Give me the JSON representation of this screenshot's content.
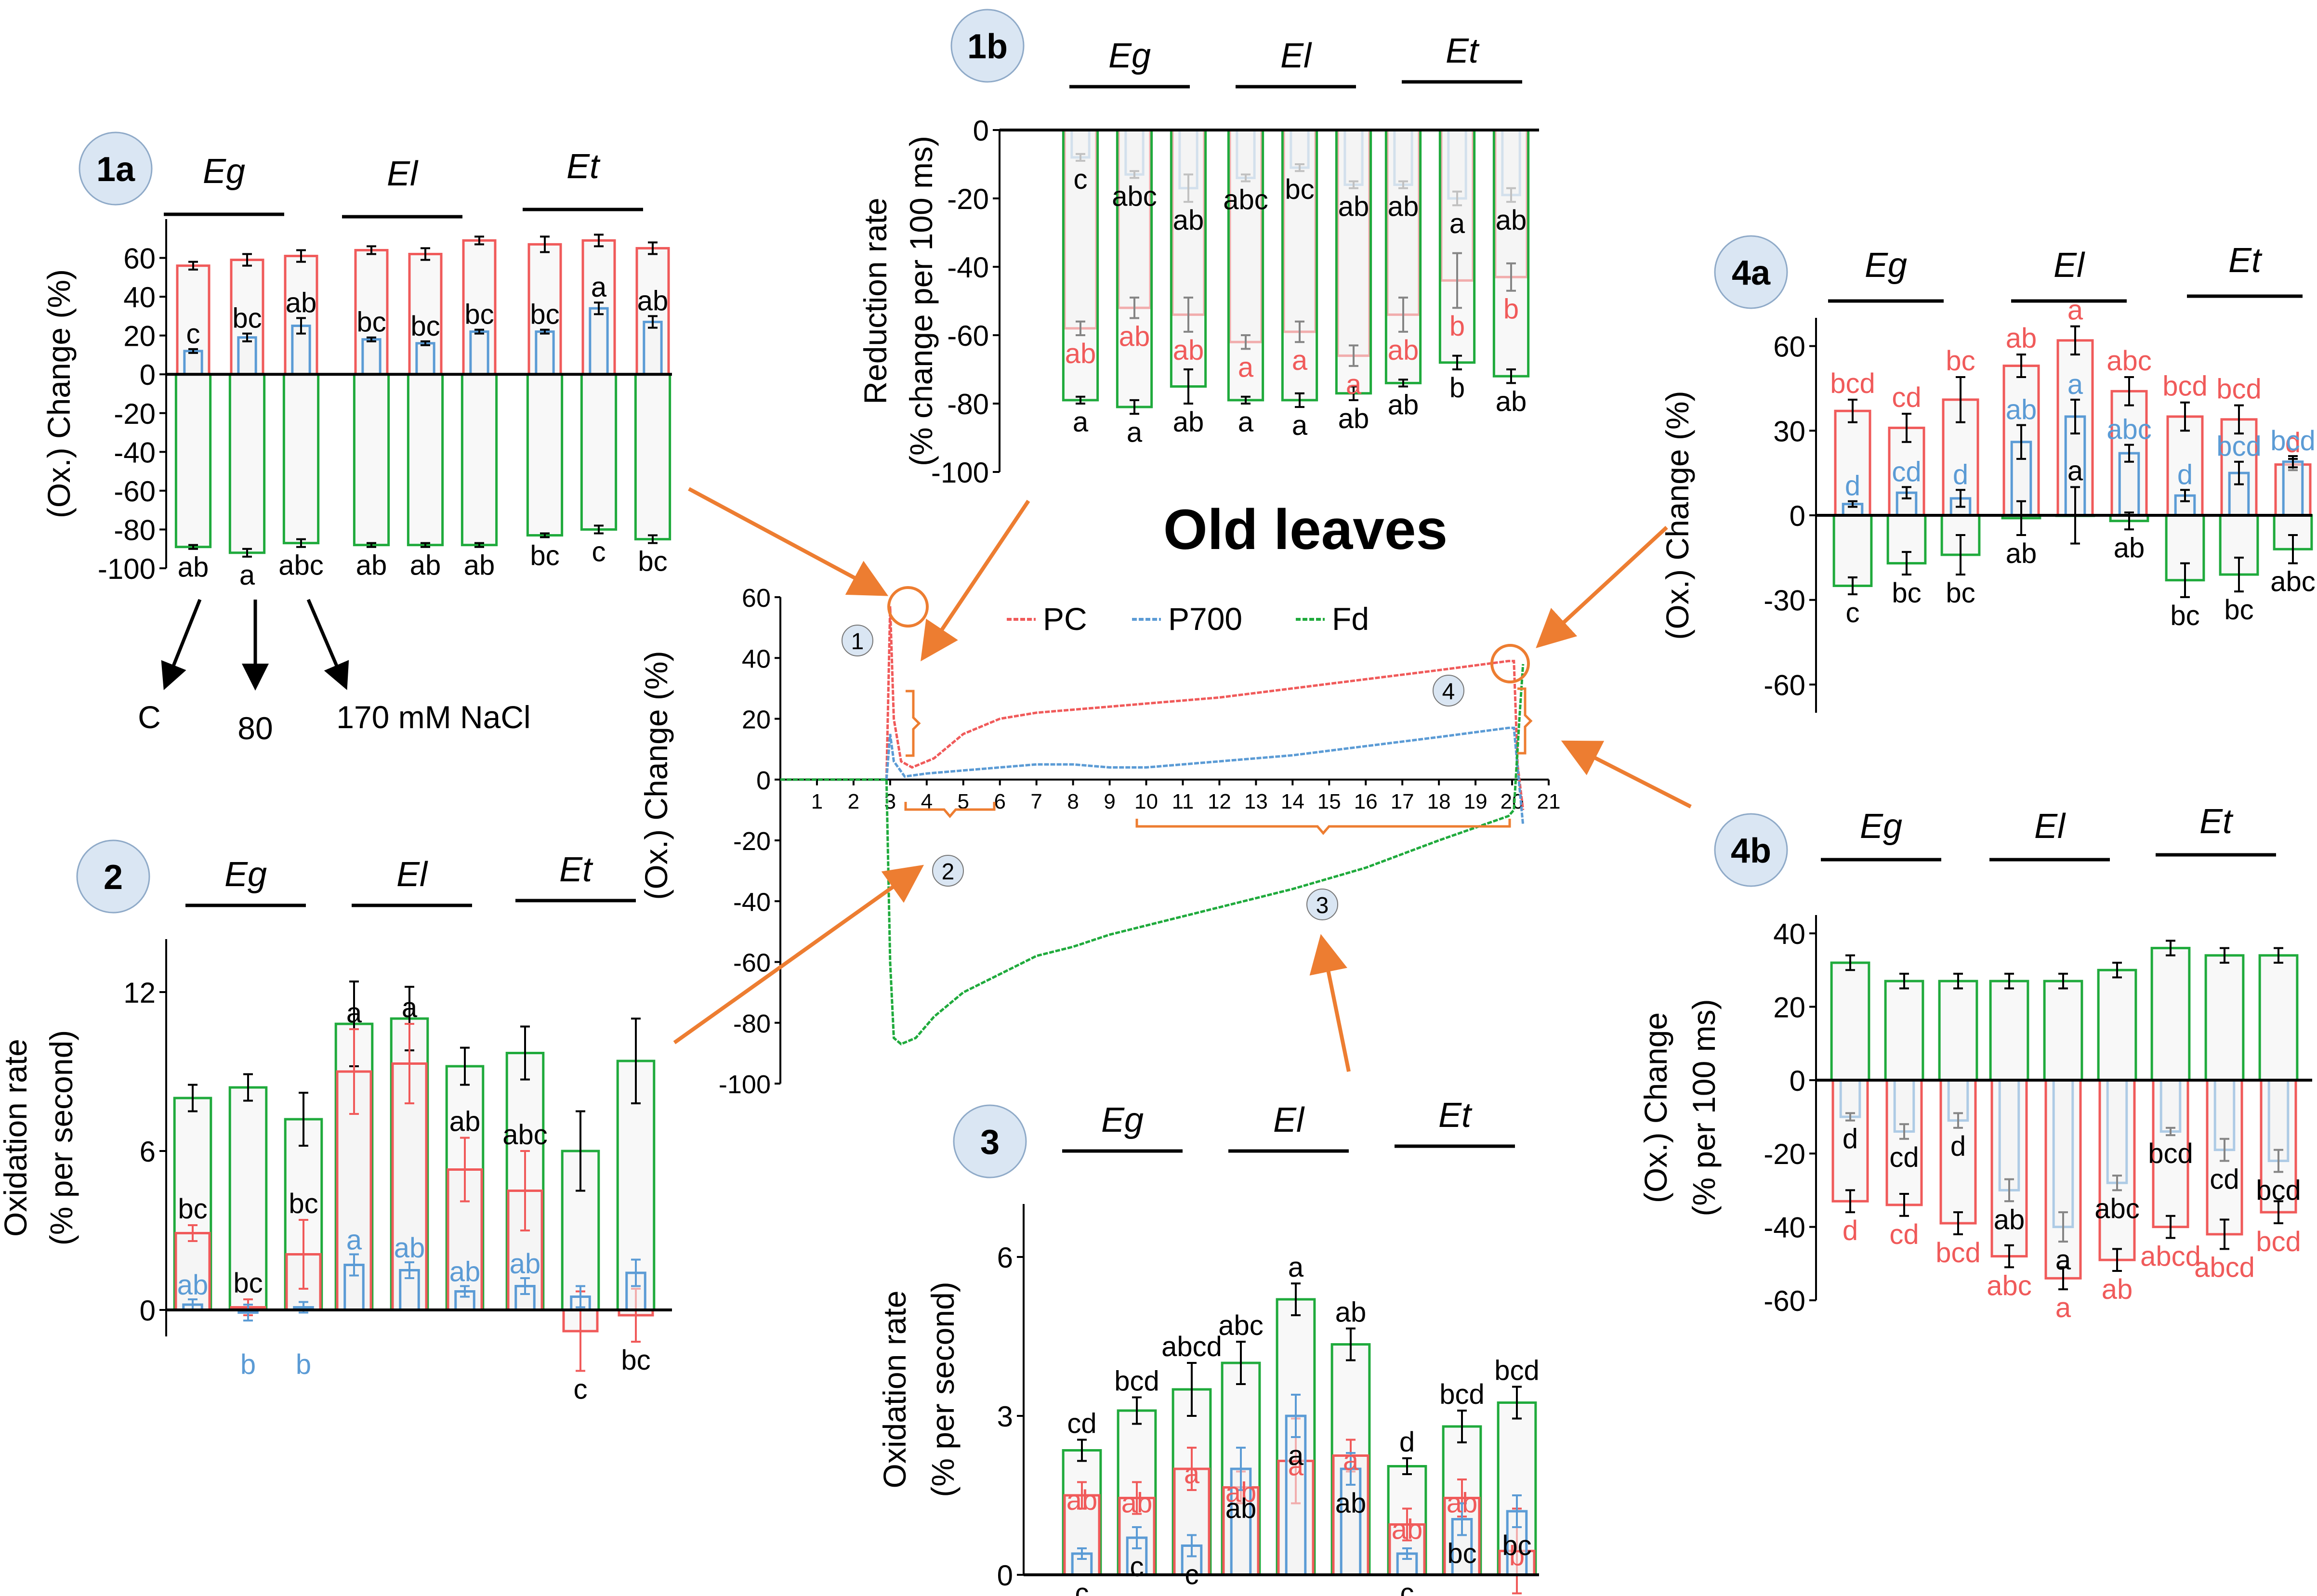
{
  "title": "Old leaves",
  "colors": {
    "pc": "#f05a5a",
    "p700": "#5b9bd5",
    "fd": "#1faa3c",
    "accent": "#ed7d31",
    "badge": "#dae6f3",
    "bar_fill": "#f2f2f2"
  },
  "chart_data": [
    {
      "id": "main",
      "type": "line",
      "title": "Old leaves",
      "ylabel": "(Ox.) Change (%)",
      "xlim": [
        0,
        21
      ],
      "ylim": [
        -100,
        60
      ],
      "x_ticks": [
        "1",
        "2",
        "3",
        "4",
        "5",
        "6",
        "7",
        "8",
        "9",
        "10",
        "11",
        "12",
        "13",
        "14",
        "15",
        "16",
        "17",
        "18",
        "19",
        "20",
        "21"
      ],
      "y_ticks": [
        "60",
        "40",
        "20",
        "0",
        "-20",
        "-40",
        "-60",
        "-80",
        "-100"
      ],
      "legend": [
        "PC",
        "P700",
        "Fd"
      ],
      "markers": [
        "1",
        "2",
        "3",
        "4"
      ],
      "series": [
        {
          "name": "PC",
          "points": [
            [
              0,
              0
            ],
            [
              2.9,
              0
            ],
            [
              3.0,
              57
            ],
            [
              3.1,
              20
            ],
            [
              3.3,
              6
            ],
            [
              3.6,
              4
            ],
            [
              4.2,
              7
            ],
            [
              5,
              15
            ],
            [
              6,
              20
            ],
            [
              7,
              22
            ],
            [
              8,
              23
            ],
            [
              9,
              24
            ],
            [
              10,
              25
            ],
            [
              12,
              27
            ],
            [
              14,
              30
            ],
            [
              16,
              33
            ],
            [
              18,
              36
            ],
            [
              19.9,
              39
            ],
            [
              20.05,
              39
            ],
            [
              20.15,
              5
            ],
            [
              20.3,
              -10
            ]
          ]
        },
        {
          "name": "P700",
          "points": [
            [
              0,
              0
            ],
            [
              2.9,
              0
            ],
            [
              3.0,
              15
            ],
            [
              3.1,
              6
            ],
            [
              3.4,
              1
            ],
            [
              4,
              2
            ],
            [
              5,
              3
            ],
            [
              6,
              4
            ],
            [
              7,
              5
            ],
            [
              8,
              5
            ],
            [
              9,
              4
            ],
            [
              10,
              4
            ],
            [
              12,
              6
            ],
            [
              14,
              8
            ],
            [
              16,
              11
            ],
            [
              18,
              14
            ],
            [
              19.9,
              17
            ],
            [
              20.05,
              17
            ],
            [
              20.3,
              -15
            ]
          ]
        },
        {
          "name": "Fd",
          "points": [
            [
              0,
              0
            ],
            [
              2.9,
              0
            ],
            [
              3.0,
              -60
            ],
            [
              3.1,
              -85
            ],
            [
              3.3,
              -87
            ],
            [
              3.7,
              -85
            ],
            [
              4.2,
              -78
            ],
            [
              5,
              -70
            ],
            [
              6,
              -64
            ],
            [
              7,
              -58
            ],
            [
              8,
              -55
            ],
            [
              9,
              -51
            ],
            [
              10,
              -48
            ],
            [
              12,
              -42
            ],
            [
              14,
              -36
            ],
            [
              16,
              -29
            ],
            [
              18,
              -20
            ],
            [
              19.9,
              -12
            ],
            [
              20.05,
              -10
            ],
            [
              20.2,
              20
            ],
            [
              20.3,
              38
            ]
          ]
        }
      ]
    },
    {
      "id": "1a",
      "type": "bar",
      "badge": "1a",
      "ylabel": "(Ox.) Change (%)",
      "groups": [
        "Eg",
        "El",
        "Et"
      ],
      "ylim": [
        -100,
        80
      ],
      "y_ticks": [
        "60",
        "40",
        "20",
        "0",
        "-20",
        "-40",
        "-60",
        "-80",
        "-100"
      ],
      "treatments": [
        "C",
        "80",
        "170 mM NaCl"
      ],
      "series": [
        {
          "name": "PC",
          "values": [
            56,
            59,
            61,
            64,
            62,
            69,
            67,
            69,
            65
          ],
          "err": [
            2,
            3,
            3,
            2,
            3,
            2,
            4,
            3,
            3
          ],
          "letters": [
            "",
            "",
            "",
            "",
            "",
            "",
            "",
            "",
            ""
          ]
        },
        {
          "name": "P700",
          "values": [
            12,
            19,
            25,
            18,
            16,
            22,
            22,
            34,
            27
          ],
          "err": [
            1,
            2,
            4,
            1,
            1,
            1,
            1,
            3,
            3
          ],
          "letters": [
            "c",
            "bc",
            "ab",
            "bc",
            "bc",
            "bc",
            "bc",
            "a",
            "ab"
          ]
        },
        {
          "name": "Fd",
          "values": [
            -89,
            -92,
            -87,
            -88,
            -88,
            -88,
            -83,
            -80,
            -85
          ],
          "err": [
            1,
            2,
            2,
            1,
            1,
            1,
            1,
            2,
            2
          ],
          "letters": [
            "ab",
            "a",
            "abc",
            "ab",
            "ab",
            "ab",
            "bc",
            "c",
            "bc"
          ]
        }
      ]
    },
    {
      "id": "1b",
      "type": "bar",
      "badge": "1b",
      "ylabel": "Reduction rate",
      "ylabel2": "(% change per 100 ms)",
      "groups": [
        "Eg",
        "El",
        "Et"
      ],
      "ylim": [
        -100,
        0
      ],
      "y_ticks": [
        "0",
        "-20",
        "-40",
        "-60",
        "-80",
        "-100"
      ],
      "series": [
        {
          "name": "P700",
          "values": [
            -8,
            -13,
            -17,
            -14,
            -11,
            -16,
            -16,
            -20,
            -19
          ],
          "err": [
            1,
            1,
            4,
            1,
            1,
            1,
            1,
            2,
            2
          ],
          "letters": [
            "c",
            "abc",
            "ab",
            "abc",
            "bc",
            "ab",
            "ab",
            "a",
            "ab"
          ]
        },
        {
          "name": "PC",
          "values": [
            -58,
            -52,
            -54,
            -62,
            -59,
            -66,
            -54,
            -44,
            -43
          ],
          "err": [
            2,
            3,
            5,
            2,
            3,
            3,
            5,
            8,
            4
          ],
          "letters": [
            "ab",
            "ab",
            "ab",
            "a",
            "a",
            "a",
            "ab",
            "b",
            "b"
          ]
        },
        {
          "name": "Fd",
          "values": [
            -79,
            -81,
            -75,
            -79,
            -79,
            -77,
            -74,
            -68,
            -72
          ],
          "err": [
            1,
            2,
            5,
            1,
            2,
            2,
            1,
            2,
            2
          ],
          "letters": [
            "a",
            "a",
            "ab",
            "a",
            "a",
            "ab",
            "ab",
            "b",
            "ab"
          ]
        }
      ]
    },
    {
      "id": "2",
      "type": "bar",
      "badge": "2",
      "ylabel": "Oxidation rate",
      "ylabel2": "(% per second)",
      "groups": [
        "Eg",
        "El",
        "Et"
      ],
      "ylim": [
        -1,
        14
      ],
      "y_ticks": [
        "12",
        "6",
        "0"
      ],
      "series": [
        {
          "name": "Fd",
          "values": [
            8.0,
            8.4,
            7.2,
            10.8,
            11.0,
            9.2,
            9.7,
            6.0,
            9.4
          ],
          "err": [
            0.5,
            0.5,
            1.0,
            1.6,
            1.2,
            0.7,
            1.0,
            1.5,
            1.6
          ],
          "letters": [
            "",
            "",
            "",
            "",
            "",
            "",
            "",
            "",
            ""
          ]
        },
        {
          "name": "PC",
          "values": [
            2.9,
            0.1,
            2.1,
            9.0,
            9.3,
            5.3,
            4.5,
            -0.8,
            -0.2
          ],
          "err": [
            0.3,
            0.3,
            1.3,
            1.6,
            1.5,
            1.2,
            1.5,
            1.5,
            1.0
          ],
          "letters": [
            "bc",
            "bc",
            "bc",
            "a",
            "a",
            "ab",
            "abc",
            "c",
            "bc"
          ]
        },
        {
          "name": "P700",
          "values": [
            0.2,
            -0.1,
            0.1,
            1.7,
            1.5,
            0.7,
            0.9,
            0.5,
            1.4
          ],
          "err": [
            0.2,
            0.3,
            0.2,
            0.4,
            0.3,
            0.2,
            0.3,
            0.4,
            0.5
          ],
          "letters": [
            "ab",
            "b",
            "b",
            "a",
            "ab",
            "ab",
            "ab",
            "",
            ""
          ]
        }
      ]
    },
    {
      "id": "3",
      "type": "bar",
      "badge": "3",
      "ylabel": "Oxidation rate",
      "ylabel2": "(% per second)",
      "groups": [
        "Eg",
        "El",
        "Et"
      ],
      "ylim": [
        0,
        7
      ],
      "y_ticks": [
        "6",
        "3",
        "0"
      ],
      "series": [
        {
          "name": "Fd",
          "values": [
            2.35,
            3.1,
            3.5,
            4.0,
            5.2,
            4.35,
            2.05,
            2.8,
            3.25
          ],
          "err": [
            0.2,
            0.25,
            0.5,
            0.4,
            0.3,
            0.3,
            0.15,
            0.3,
            0.3
          ],
          "letters": [
            "cd",
            "bcd",
            "abcd",
            "abc",
            "a",
            "ab",
            "d",
            "bcd",
            "bcd"
          ]
        },
        {
          "name": "PC",
          "values": [
            1.5,
            1.45,
            2.0,
            1.65,
            2.15,
            2.25,
            0.95,
            1.45,
            0.45
          ],
          "err": [
            0.25,
            0.3,
            0.4,
            0.3,
            0.8,
            0.3,
            0.3,
            0.35,
            0.8
          ],
          "letters": [
            "ab",
            "ab",
            "a",
            "ab",
            "a",
            "a",
            "ab",
            "ab",
            "b"
          ]
        },
        {
          "name": "P700",
          "values": [
            0.4,
            0.7,
            0.55,
            2.0,
            3.0,
            2.0,
            0.4,
            1.05,
            1.2
          ],
          "err": [
            0.1,
            0.2,
            0.2,
            0.4,
            0.4,
            0.3,
            0.1,
            0.3,
            0.3
          ],
          "letters": [
            "c",
            "c",
            "c",
            "ab",
            "a",
            "ab",
            "c",
            "bc",
            "bc"
          ]
        }
      ]
    },
    {
      "id": "4a",
      "type": "bar",
      "badge": "4a",
      "ylabel": "(Ox.) Change (%)",
      "groups": [
        "Eg",
        "El",
        "Et"
      ],
      "ylim": [
        -70,
        70
      ],
      "y_ticks": [
        "60",
        "30",
        "0",
        "-30",
        "-60"
      ],
      "series": [
        {
          "name": "PC",
          "values": [
            37,
            31,
            41,
            53,
            62,
            44,
            35,
            34,
            18
          ],
          "err": [
            4,
            5,
            8,
            4,
            5,
            5,
            5,
            5,
            2
          ],
          "letters": [
            "bcd",
            "cd",
            "bc",
            "ab",
            "a",
            "abc",
            "bcd",
            "bcd",
            "d"
          ]
        },
        {
          "name": "P700",
          "values": [
            4,
            8,
            6,
            26,
            35,
            22,
            7,
            15,
            19
          ],
          "err": [
            1,
            2,
            3,
            6,
            6,
            3,
            2,
            4,
            2
          ],
          "letters": [
            "d",
            "cd",
            "d",
            "ab",
            "a",
            "abc",
            "d",
            "bcd",
            "bcd"
          ]
        },
        {
          "name": "Fd",
          "values": [
            -25,
            -17,
            -14,
            -1,
            0,
            -2,
            -23,
            -21,
            -12
          ],
          "err": [
            3,
            4,
            7,
            6,
            10,
            3,
            6,
            6,
            5
          ],
          "letters": [
            "c",
            "bc",
            "bc",
            "ab",
            "a",
            "ab",
            "bc",
            "bc",
            "abc"
          ]
        }
      ]
    },
    {
      "id": "4b",
      "type": "bar",
      "badge": "4b",
      "ylabel": "(Ox.) Change",
      "ylabel2": "(% per 100 ms)",
      "groups": [
        "Eg",
        "El",
        "Et"
      ],
      "ylim": [
        -60,
        45
      ],
      "y_ticks": [
        "40",
        "20",
        "0",
        "-20",
        "-40",
        "-60"
      ],
      "series": [
        {
          "name": "Fd",
          "values": [
            32,
            27,
            27,
            27,
            27,
            30,
            36,
            34,
            34
          ],
          "err": [
            2,
            2,
            2,
            2,
            2,
            2,
            2,
            2,
            2
          ],
          "letters": [
            "",
            "",
            "",
            "",
            "",
            "",
            "",
            "",
            ""
          ]
        },
        {
          "name": "P700",
          "values": [
            -10,
            -14,
            -11,
            -30,
            -40,
            -28,
            -14,
            -19,
            -22
          ],
          "err": [
            1,
            2,
            2,
            3,
            4,
            2,
            1,
            3,
            3
          ],
          "letters": [
            "d",
            "cd",
            "d",
            "ab",
            "a",
            "abc",
            "bcd",
            "cd",
            "bcd"
          ]
        },
        {
          "name": "PC",
          "values": [
            -33,
            -34,
            -39,
            -48,
            -54,
            -49,
            -40,
            -42,
            -36
          ],
          "err": [
            3,
            3,
            3,
            3,
            3,
            3,
            3,
            4,
            3
          ],
          "letters": [
            "d",
            "cd",
            "bcd",
            "abc",
            "a",
            "ab",
            "abcd",
            "abcd",
            "bcd"
          ]
        }
      ]
    }
  ]
}
